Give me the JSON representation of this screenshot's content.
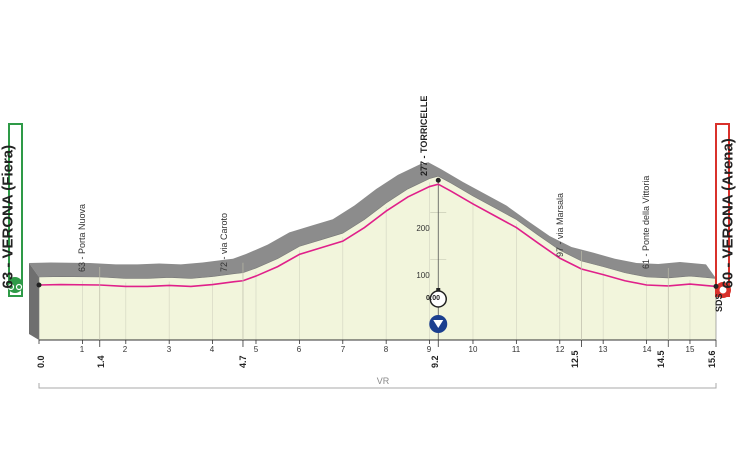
{
  "start": {
    "label": "63 - VERONA (Fiera)",
    "km": "0.0",
    "color": "#2e9a47"
  },
  "finish": {
    "label": "60 - VERONA (Arena)",
    "km": "15.6",
    "color": "#d9312b",
    "marker": "SDS"
  },
  "summit": {
    "label": "277 - TORRICELLE",
    "km": "9.2",
    "time_check": "0:00"
  },
  "waypoints": [
    {
      "label": "63 - Porta Nuova",
      "km": "1.4"
    },
    {
      "label": "72 - via Caroto",
      "km": "4.7"
    },
    {
      "label": "97 - via Marsala",
      "km": "12.5"
    },
    {
      "label": "61 - Ponte della Vittoria",
      "km": "14.5"
    }
  ],
  "km_ticks": [
    "1",
    "2",
    "3",
    "4",
    "5",
    "6",
    "7",
    "8",
    "9",
    "10",
    "11",
    "12",
    "13",
    "14",
    "15"
  ],
  "altitude_ticks": [
    "100",
    "200"
  ],
  "region_label": "VR",
  "colors": {
    "profile_fill": "#f2f5dc",
    "road_line": "#e0208a",
    "side_fill": "#8c8c8c"
  },
  "chart_data": {
    "type": "area",
    "xlabel": "",
    "ylabel": "",
    "x_unit": "km",
    "y_unit": "m",
    "xlim": [
      0,
      15.6
    ],
    "ylim": [
      0,
      300
    ],
    "series": [
      {
        "x": [
          0,
          0.5,
          1.4,
          2,
          2.5,
          3,
          3.5,
          4,
          4.5,
          4.7,
          5,
          5.5,
          6,
          6.5,
          7,
          7.5,
          8,
          8.5,
          9,
          9.2,
          9.5,
          10,
          10.5,
          11,
          11.5,
          12,
          12.5,
          13,
          13.5,
          14,
          14.5,
          15,
          15.6
        ],
        "y": [
          63,
          64,
          63,
          60,
          60,
          62,
          60,
          64,
          70,
          72,
          82,
          102,
          128,
          142,
          156,
          185,
          220,
          250,
          272,
          277,
          262,
          235,
          210,
          185,
          152,
          120,
          97,
          85,
          72,
          63,
          61,
          65,
          60
        ]
      }
    ]
  }
}
